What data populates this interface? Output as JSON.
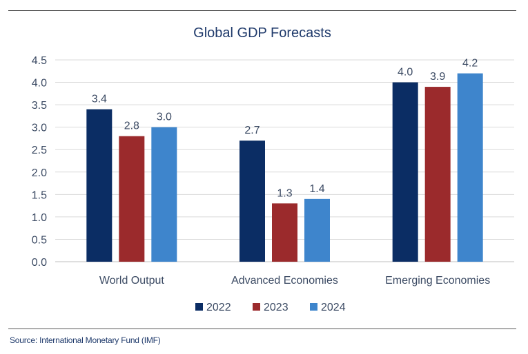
{
  "chart_data": {
    "type": "bar",
    "title": "Global GDP Forecasts",
    "categories": [
      "World Output",
      "Advanced Economies",
      "Emerging Economies"
    ],
    "series": [
      {
        "name": "2022",
        "values": [
          3.4,
          2.7,
          4.0
        ],
        "color": "#0b2d64"
      },
      {
        "name": "2023",
        "values": [
          2.8,
          1.3,
          3.9
        ],
        "color": "#9b2a2c"
      },
      {
        "name": "2024",
        "values": [
          3.0,
          1.4,
          4.2
        ],
        "color": "#3e85cc"
      }
    ],
    "y_ticks": [
      "0.0",
      "0.5",
      "1.0",
      "1.5",
      "2.0",
      "2.5",
      "3.0",
      "3.5",
      "4.0",
      "4.5"
    ],
    "ylim": [
      0,
      4.5
    ],
    "grid": true,
    "legend_position": "bottom-center",
    "data_labels": true
  },
  "source_note": "Source: International Monetary Fund (IMF)",
  "colors": {
    "title": "#1f3a6b",
    "axis_text": "#3b4a63",
    "grid": "#d9d9d9"
  }
}
